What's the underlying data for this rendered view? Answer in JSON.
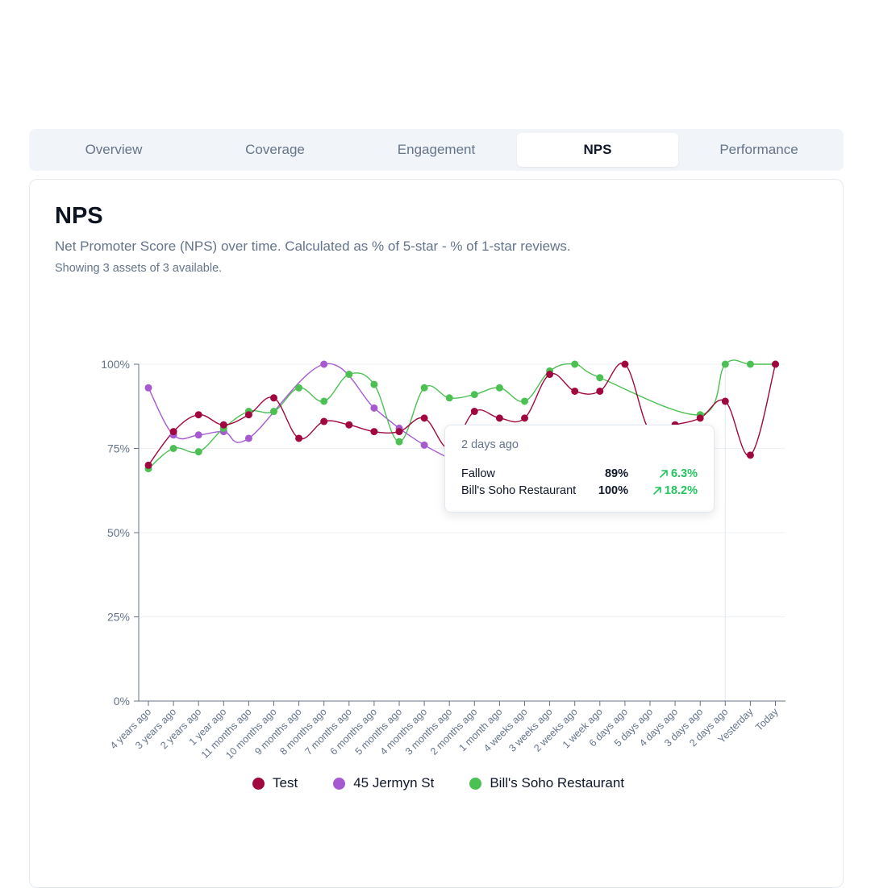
{
  "tabs": [
    {
      "label": "Overview",
      "active": false
    },
    {
      "label": "Coverage",
      "active": false
    },
    {
      "label": "Engagement",
      "active": false
    },
    {
      "label": "NPS",
      "active": true
    },
    {
      "label": "Performance",
      "active": false
    }
  ],
  "card": {
    "title": "NPS",
    "subtitle": "Net Promoter Score (NPS) over time. Calculated as % of 5-star - % of 1-star reviews.",
    "note": "Showing 3 assets of 3 available."
  },
  "tooltip": {
    "date": "2 days ago",
    "rows": [
      {
        "name": "Fallow",
        "value": "89%",
        "change": "6.3%"
      },
      {
        "name": "Bill's Soho Restaurant",
        "value": "100%",
        "change": "18.2%"
      }
    ]
  },
  "colors": {
    "test": "#a0073f",
    "jermyn": "#a65ad0",
    "soho": "#4cc053",
    "positive": "#22c55e",
    "axis": "#64748b",
    "grid": "#eef1f5"
  },
  "chart_data": {
    "type": "line",
    "x": [
      "4 years ago",
      "3 years ago",
      "2 years ago",
      "1 year ago",
      "11 months ago",
      "10 months ago",
      "9 months ago",
      "8 months ago",
      "7 months ago",
      "6 months ago",
      "5 months ago",
      "4 months ago",
      "3 months ago",
      "2 months ago",
      "1 month ago",
      "4 weeks ago",
      "3 weeks ago",
      "2 weeks ago",
      "1 week ago",
      "6 days ago",
      "5 days ago",
      "4 days ago",
      "3 days ago",
      "2 days ago",
      "Yesterday",
      "Today"
    ],
    "yticks": [
      "0%",
      "25%",
      "50%",
      "75%",
      "100%"
    ],
    "ylim": [
      0,
      100
    ],
    "series": [
      {
        "name": "Test",
        "color": "#a0073f",
        "values": [
          70,
          80,
          85,
          82,
          85,
          90,
          78,
          83,
          82,
          80,
          80,
          84,
          75,
          86,
          84,
          84,
          97,
          92,
          92,
          100,
          80,
          82,
          84,
          89,
          73,
          100
        ]
      },
      {
        "name": "45 Jermyn St",
        "color": "#a65ad0",
        "values": [
          93,
          79,
          79,
          80,
          78,
          null,
          null,
          100,
          null,
          87,
          81,
          76,
          72,
          null,
          null,
          null,
          null,
          null,
          null,
          null,
          null,
          null,
          null,
          null,
          null,
          null
        ]
      },
      {
        "name": "Bill's Soho Restaurant",
        "color": "#4cc053",
        "values": [
          69,
          75,
          74,
          81,
          86,
          86,
          93,
          89,
          97,
          94,
          77,
          93,
          90,
          91,
          93,
          89,
          98,
          100,
          96,
          null,
          null,
          null,
          85,
          100,
          100,
          100
        ]
      }
    ],
    "highlight_x": "2 days ago",
    "legend_position": "bottom"
  }
}
